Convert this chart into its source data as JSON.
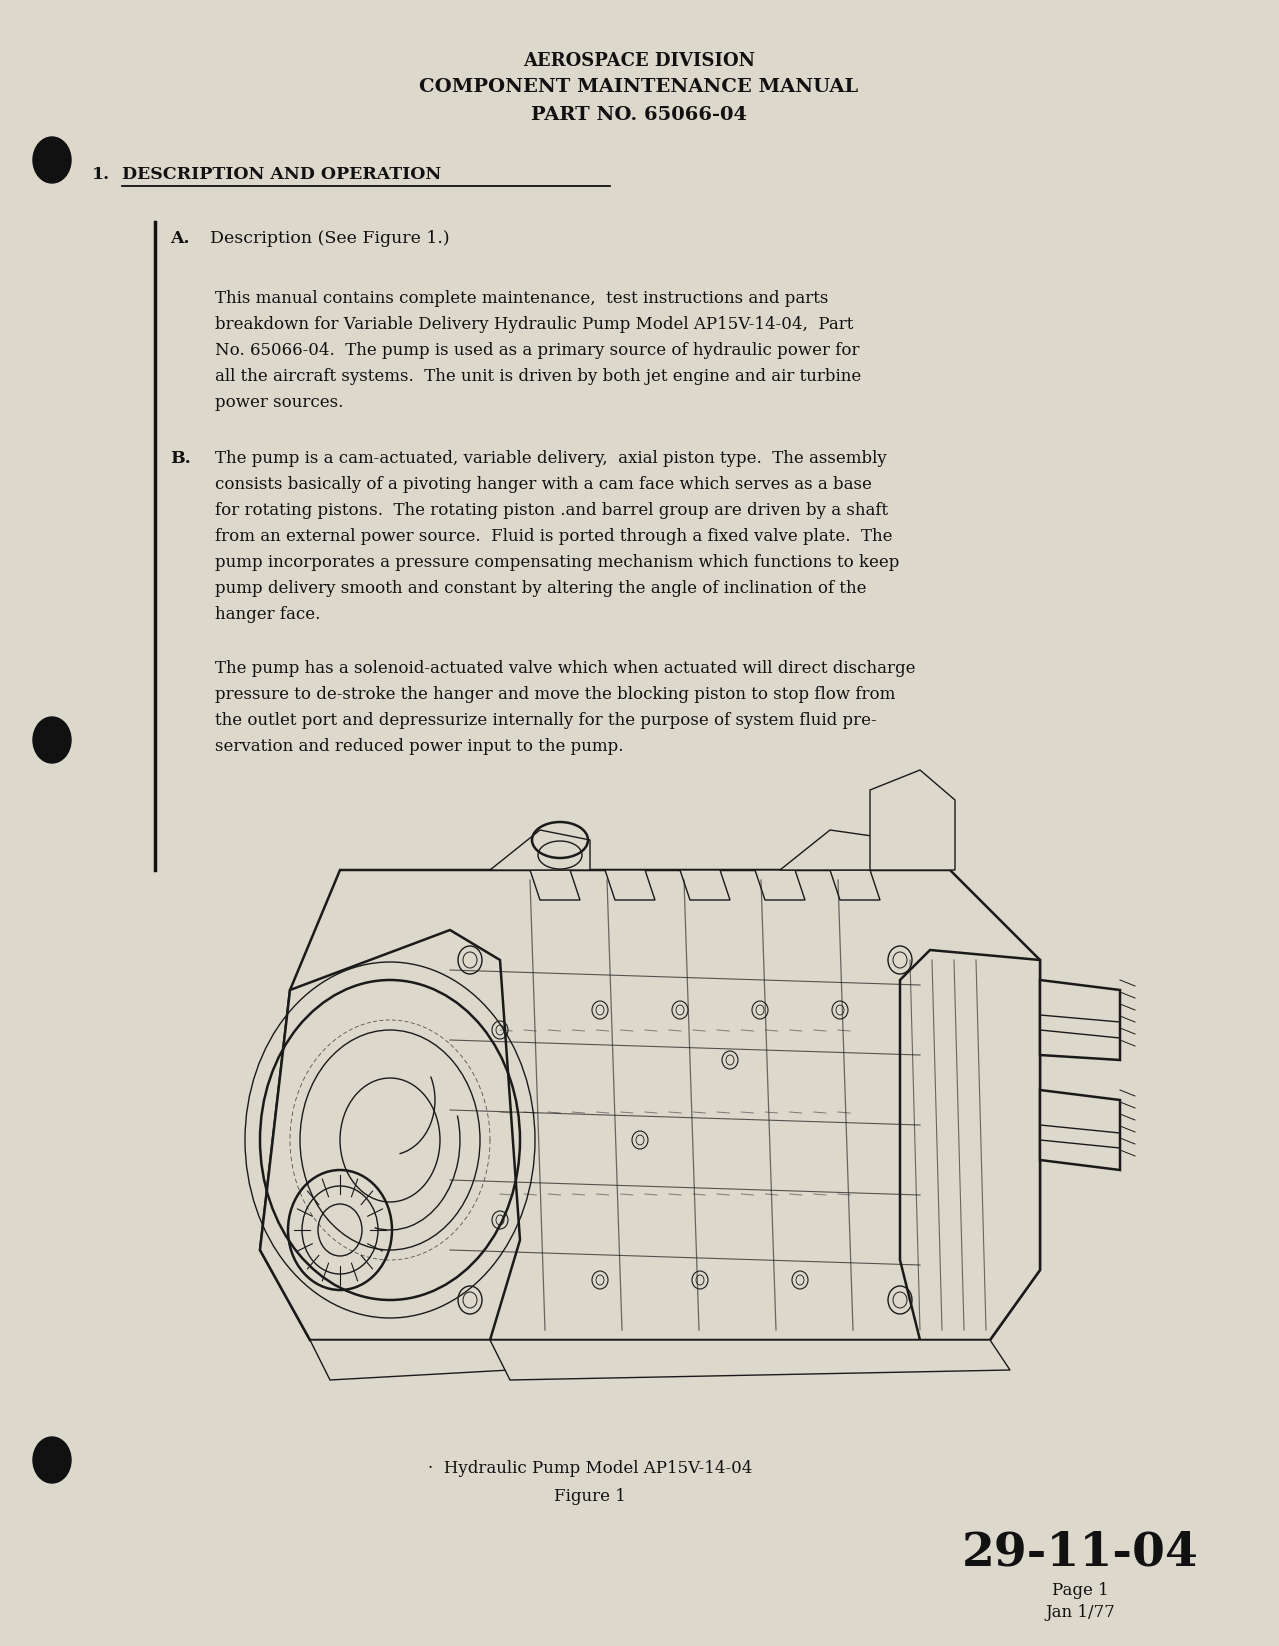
{
  "bg_color": "#ddd8cc",
  "text_color": "#111111",
  "page_width": 12.79,
  "page_height": 16.46,
  "header_line1": "AEROSPACE DIVISION",
  "header_line2": "COMPONENT MAINTENANCE MANUAL",
  "header_line3": "PART NO. 65066-04",
  "section_title": "1.",
  "section_title_text": "DESCRIPTION AND OPERATION",
  "subsection_a_label": "A.",
  "subsection_a_text": "Description (See Figure 1.)",
  "para_a_text1": "This manual contains complete maintenance,  test instructions and parts",
  "para_a_text2": "breakdown for Variable Delivery Hydraulic Pump Model AP15V-14-04,  Part",
  "para_a_text3": "No. 65066-04.  The pump is used as a primary source of hydraulic power for",
  "para_a_text4": "all the aircraft systems.  The unit is driven by both jet engine and air turbine",
  "para_a_text5": "power sources.",
  "subsection_b_label": "B.",
  "para_b_text1": "The pump is a cam-actuated, variable delivery,  axial piston type.  The assembly",
  "para_b_text2": "consists basically of a pivoting hanger with a cam face which serves as a base",
  "para_b_text3": "for rotating pistons.  The rotating piston .and barrel group are driven by a shaft",
  "para_b_text4": "from an external power source.  Fluid is ported through a fixed valve plate.  The",
  "para_b_text5": "pump incorporates a pressure compensating mechanism which functions to keep",
  "para_b_text6": "pump delivery smooth and constant by altering the angle of inclination of the",
  "para_b_text7": "hanger face.",
  "para_c_text1": "The pump has a solenoid-actuated valve which when actuated will direct discharge",
  "para_c_text2": "pressure to de-stroke the hanger and move the blocking piston to stop flow from",
  "para_c_text3": "the outlet port and depressurize internally for the purpose of system fluid pre-",
  "para_c_text4": "servation and reduced power input to the pump.",
  "fig_caption_line1": "·  Hydraulic Pump Model AP15V-14-04",
  "fig_caption_line2": "Figure 1",
  "page_ref_large": "29-11-04",
  "page_ref_page": "Page 1",
  "page_ref_date": "Jan 1/77",
  "bullet_color": "#111111",
  "line_color": "#111111"
}
